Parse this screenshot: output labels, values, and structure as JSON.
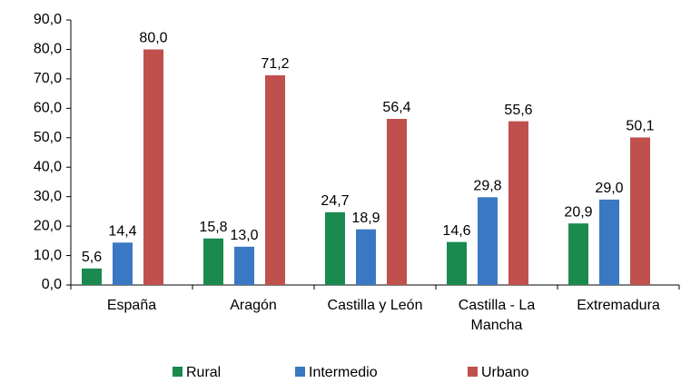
{
  "chart_data": {
    "type": "bar",
    "categories": [
      "España",
      "Aragón",
      "Castilla y León",
      "Castilla - La Mancha",
      "Extremadura"
    ],
    "series": [
      {
        "name": "Rural",
        "color": "#1a8a4f",
        "values": [
          5.6,
          15.8,
          24.7,
          14.6,
          20.9
        ],
        "value_labels": [
          "5,6",
          "15,8",
          "24,7",
          "14,6",
          "20,9"
        ]
      },
      {
        "name": "Intermedio",
        "color": "#3a78c3",
        "values": [
          14.4,
          13.0,
          18.9,
          29.8,
          29.0
        ],
        "value_labels": [
          "14,4",
          "13,0",
          "18,9",
          "29,8",
          "29,0"
        ]
      },
      {
        "name": "Urbano",
        "color": "#c0504d",
        "values": [
          80.0,
          71.2,
          56.4,
          55.6,
          50.1
        ],
        "value_labels": [
          "80,0",
          "71,2",
          "56,4",
          "55,6",
          "50,1"
        ]
      }
    ],
    "ylim": [
      0,
      90
    ],
    "yticks": [
      {
        "value": 0,
        "label": "0,0"
      },
      {
        "value": 10,
        "label": "10,0"
      },
      {
        "value": 20,
        "label": "20,0"
      },
      {
        "value": 30,
        "label": "30,0"
      },
      {
        "value": 40,
        "label": "40,0"
      },
      {
        "value": 50,
        "label": "50,0"
      },
      {
        "value": 60,
        "label": "60,0"
      },
      {
        "value": 70,
        "label": "70,0"
      },
      {
        "value": 80,
        "label": "80,0"
      },
      {
        "value": 90,
        "label": "90,0"
      }
    ],
    "legend": "bottom"
  }
}
